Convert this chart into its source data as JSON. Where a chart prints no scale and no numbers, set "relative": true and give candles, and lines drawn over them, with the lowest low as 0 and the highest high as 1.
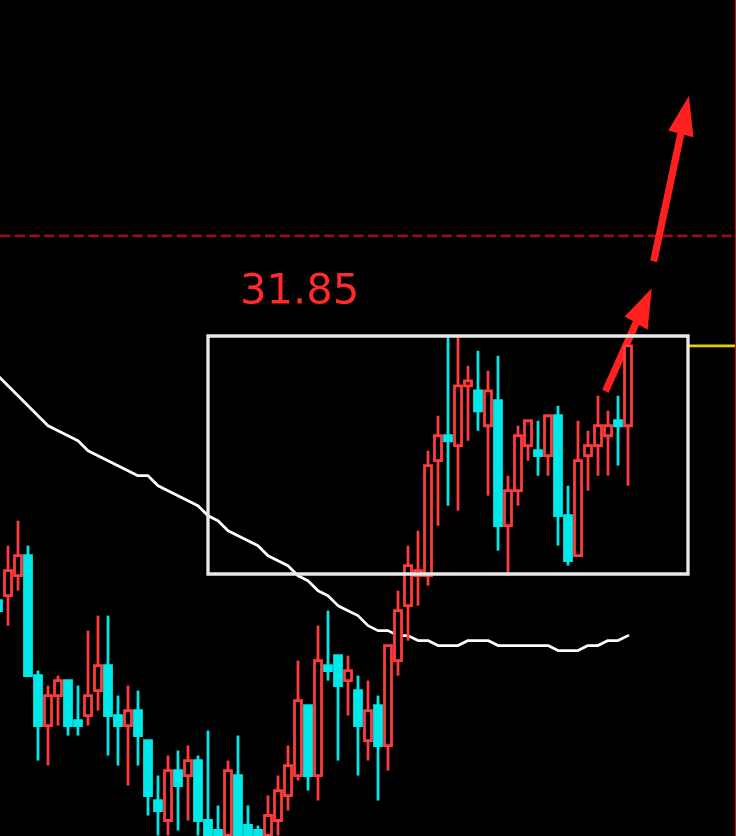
{
  "chart_data": {
    "type": "candlestick",
    "relative": true,
    "categories": [
      null,
      null,
      null,
      null,
      null,
      null,
      null,
      null,
      null,
      null,
      null,
      null,
      null,
      null,
      null,
      null,
      null,
      null,
      null,
      null,
      null,
      null,
      null,
      null,
      null,
      null,
      null,
      null,
      null,
      null,
      null,
      null,
      null,
      null,
      null,
      null,
      null,
      null,
      null,
      null,
      null,
      null,
      null,
      null,
      null,
      null,
      null,
      null,
      null,
      null,
      null,
      null,
      null,
      null,
      null,
      null,
      null,
      null,
      null,
      null,
      null,
      null,
      null,
      null
    ],
    "colors": [
      "#00e8e8",
      "#ff3b3b",
      "#ff3b3b",
      "#00e8e8",
      "#00e8e8",
      "#ff3b3b",
      "#ff3b3b",
      "#00e8e8",
      "#00e8e8",
      "#ff3b3b",
      "#ff3b3b",
      "#00e8e8",
      "#00e8e8",
      "#ff3b3b",
      "#00e8e8",
      "#00e8e8",
      "#00e8e8",
      "#ff3b3b",
      "#00e8e8",
      "#ff3b3b",
      "#00e8e8",
      "#00e8e8",
      "#00e8e8",
      "#ff3b3b",
      "#00e8e8",
      "#00e8e8",
      "#00e8e8",
      "#ff3b3b",
      "#ff3b3b",
      "#ff3b3b",
      "#ff3b3b",
      "#00e8e8",
      "#ff3b3b",
      "#00e8e8",
      "#00e8e8",
      "#ff3b3b",
      "#00e8e8",
      "#ff3b3b",
      "#00e8e8",
      "#ff3b3b",
      "#ff3b3b",
      "#ff3b3b",
      "#ff3b3b",
      "#ff3b3b",
      "#ff3b3b",
      "#00e8e8",
      "#ff3b3b",
      "#ff3b3b",
      "#00e8e8",
      "#ff3b3b",
      "#00e8e8",
      "#ff3b3b",
      "#ff3b3b",
      "#ff3b3b",
      "#00e8e8",
      "#ff3b3b",
      "#00e8e8",
      "#00e8e8",
      "#ff3b3b",
      "#ff3b3b",
      "#ff3b3b",
      "#ff3b3b",
      "#00e8e8",
      "#ff3b3b"
    ],
    "ohlc": [
      [
        0.47,
        0.48,
        0.44,
        0.45
      ],
      [
        0.48,
        0.58,
        0.42,
        0.53
      ],
      [
        0.52,
        0.63,
        0.49,
        0.56
      ],
      [
        0.56,
        0.58,
        0.32,
        0.32
      ],
      [
        0.32,
        0.33,
        0.15,
        0.22
      ],
      [
        0.22,
        0.3,
        0.14,
        0.28
      ],
      [
        0.28,
        0.32,
        0.22,
        0.31
      ],
      [
        0.31,
        0.31,
        0.2,
        0.22
      ],
      [
        0.23,
        0.3,
        0.2,
        0.22
      ],
      [
        0.24,
        0.41,
        0.22,
        0.28
      ],
      [
        0.29,
        0.44,
        0.25,
        0.34
      ],
      [
        0.34,
        0.44,
        0.16,
        0.24
      ],
      [
        0.24,
        0.28,
        0.14,
        0.22
      ],
      [
        0.22,
        0.3,
        0.1,
        0.25
      ],
      [
        0.25,
        0.29,
        0.14,
        0.2
      ],
      [
        0.19,
        0.19,
        0.04,
        0.08
      ],
      [
        0.07,
        0.12,
        0.0,
        0.05
      ],
      [
        0.03,
        0.16,
        0.0,
        0.13
      ],
      [
        0.13,
        0.17,
        0.01,
        0.1
      ],
      [
        0.12,
        0.18,
        0.03,
        0.15
      ],
      [
        0.15,
        0.16,
        0.0,
        0.03
      ],
      [
        0.03,
        0.21,
        0.0,
        0.0
      ],
      [
        0.01,
        0.06,
        0.0,
        0.0
      ],
      [
        0.0,
        0.15,
        0.0,
        0.13
      ],
      [
        0.12,
        0.2,
        0.0,
        0.0
      ],
      [
        0.02,
        0.06,
        0.0,
        0.0
      ],
      [
        0.01,
        0.02,
        0.0,
        0.0
      ],
      [
        0.0,
        0.08,
        0.0,
        0.04
      ],
      [
        0.03,
        0.12,
        0.0,
        0.09
      ],
      [
        0.08,
        0.18,
        0.05,
        0.14
      ],
      [
        0.12,
        0.35,
        0.11,
        0.27
      ],
      [
        0.26,
        0.26,
        0.09,
        0.12
      ],
      [
        0.12,
        0.42,
        0.07,
        0.35
      ],
      [
        0.34,
        0.45,
        0.31,
        0.33
      ],
      [
        0.36,
        0.36,
        0.15,
        0.3
      ],
      [
        0.31,
        0.36,
        0.24,
        0.33
      ],
      [
        0.29,
        0.32,
        0.12,
        0.22
      ],
      [
        0.19,
        0.31,
        0.15,
        0.25
      ],
      [
        0.26,
        0.28,
        0.07,
        0.18
      ],
      [
        0.18,
        0.38,
        0.13,
        0.38
      ],
      [
        0.35,
        0.49,
        0.32,
        0.45
      ],
      [
        0.46,
        0.58,
        0.39,
        0.54
      ],
      [
        0.52,
        0.61,
        0.46,
        0.53
      ],
      [
        0.52,
        0.77,
        0.5,
        0.74
      ],
      [
        0.75,
        0.84,
        0.62,
        0.8
      ],
      [
        0.8,
        1.0,
        0.66,
        0.79
      ],
      [
        0.78,
        1.0,
        0.65,
        0.9
      ],
      [
        0.9,
        0.94,
        0.79,
        0.91
      ],
      [
        0.89,
        0.97,
        0.81,
        0.85
      ],
      [
        0.82,
        0.93,
        0.68,
        0.89
      ],
      [
        0.87,
        0.96,
        0.57,
        0.62
      ],
      [
        0.62,
        0.72,
        0.52,
        0.69
      ],
      [
        0.69,
        0.82,
        0.66,
        0.8
      ],
      [
        0.78,
        0.83,
        0.75,
        0.83
      ],
      [
        0.77,
        0.83,
        0.72,
        0.76
      ],
      [
        0.76,
        0.84,
        0.72,
        0.84
      ],
      [
        0.84,
        0.86,
        0.58,
        0.64
      ],
      [
        0.64,
        0.7,
        0.54,
        0.55
      ],
      [
        0.56,
        0.83,
        0.56,
        0.75
      ],
      [
        0.76,
        0.81,
        0.69,
        0.78
      ],
      [
        0.78,
        0.88,
        0.72,
        0.82
      ],
      [
        0.8,
        0.85,
        0.72,
        0.82
      ],
      [
        0.83,
        0.88,
        0.74,
        0.82
      ],
      [
        0.82,
        0.98,
        0.7,
        0.98
      ]
    ],
    "series": [
      {
        "type": "line",
        "color": "#ffffff",
        "values": [
          0.92,
          0.9,
          0.88,
          0.86,
          0.84,
          0.82,
          0.81,
          0.8,
          0.79,
          0.77,
          0.76,
          0.75,
          0.74,
          0.73,
          0.72,
          0.72,
          0.7,
          0.69,
          0.68,
          0.67,
          0.66,
          0.64,
          0.63,
          0.61,
          0.6,
          0.59,
          0.58,
          0.56,
          0.55,
          0.54,
          0.52,
          0.51,
          0.49,
          0.48,
          0.46,
          0.45,
          0.44,
          0.42,
          0.41,
          0.41,
          0.4,
          0.4,
          0.39,
          0.39,
          0.38,
          0.38,
          0.38,
          0.39,
          0.39,
          0.39,
          0.38,
          0.38,
          0.38,
          0.38,
          0.38,
          0.38,
          0.37,
          0.37,
          0.37,
          0.38,
          0.38,
          0.39,
          0.39,
          0.4
        ]
      }
    ],
    "ref_lines": [
      {
        "axis": "y",
        "value": 1.2,
        "color": "#9a1010",
        "line_style": "dashed"
      }
    ],
    "annotations": [
      "31.85"
    ]
  }
}
